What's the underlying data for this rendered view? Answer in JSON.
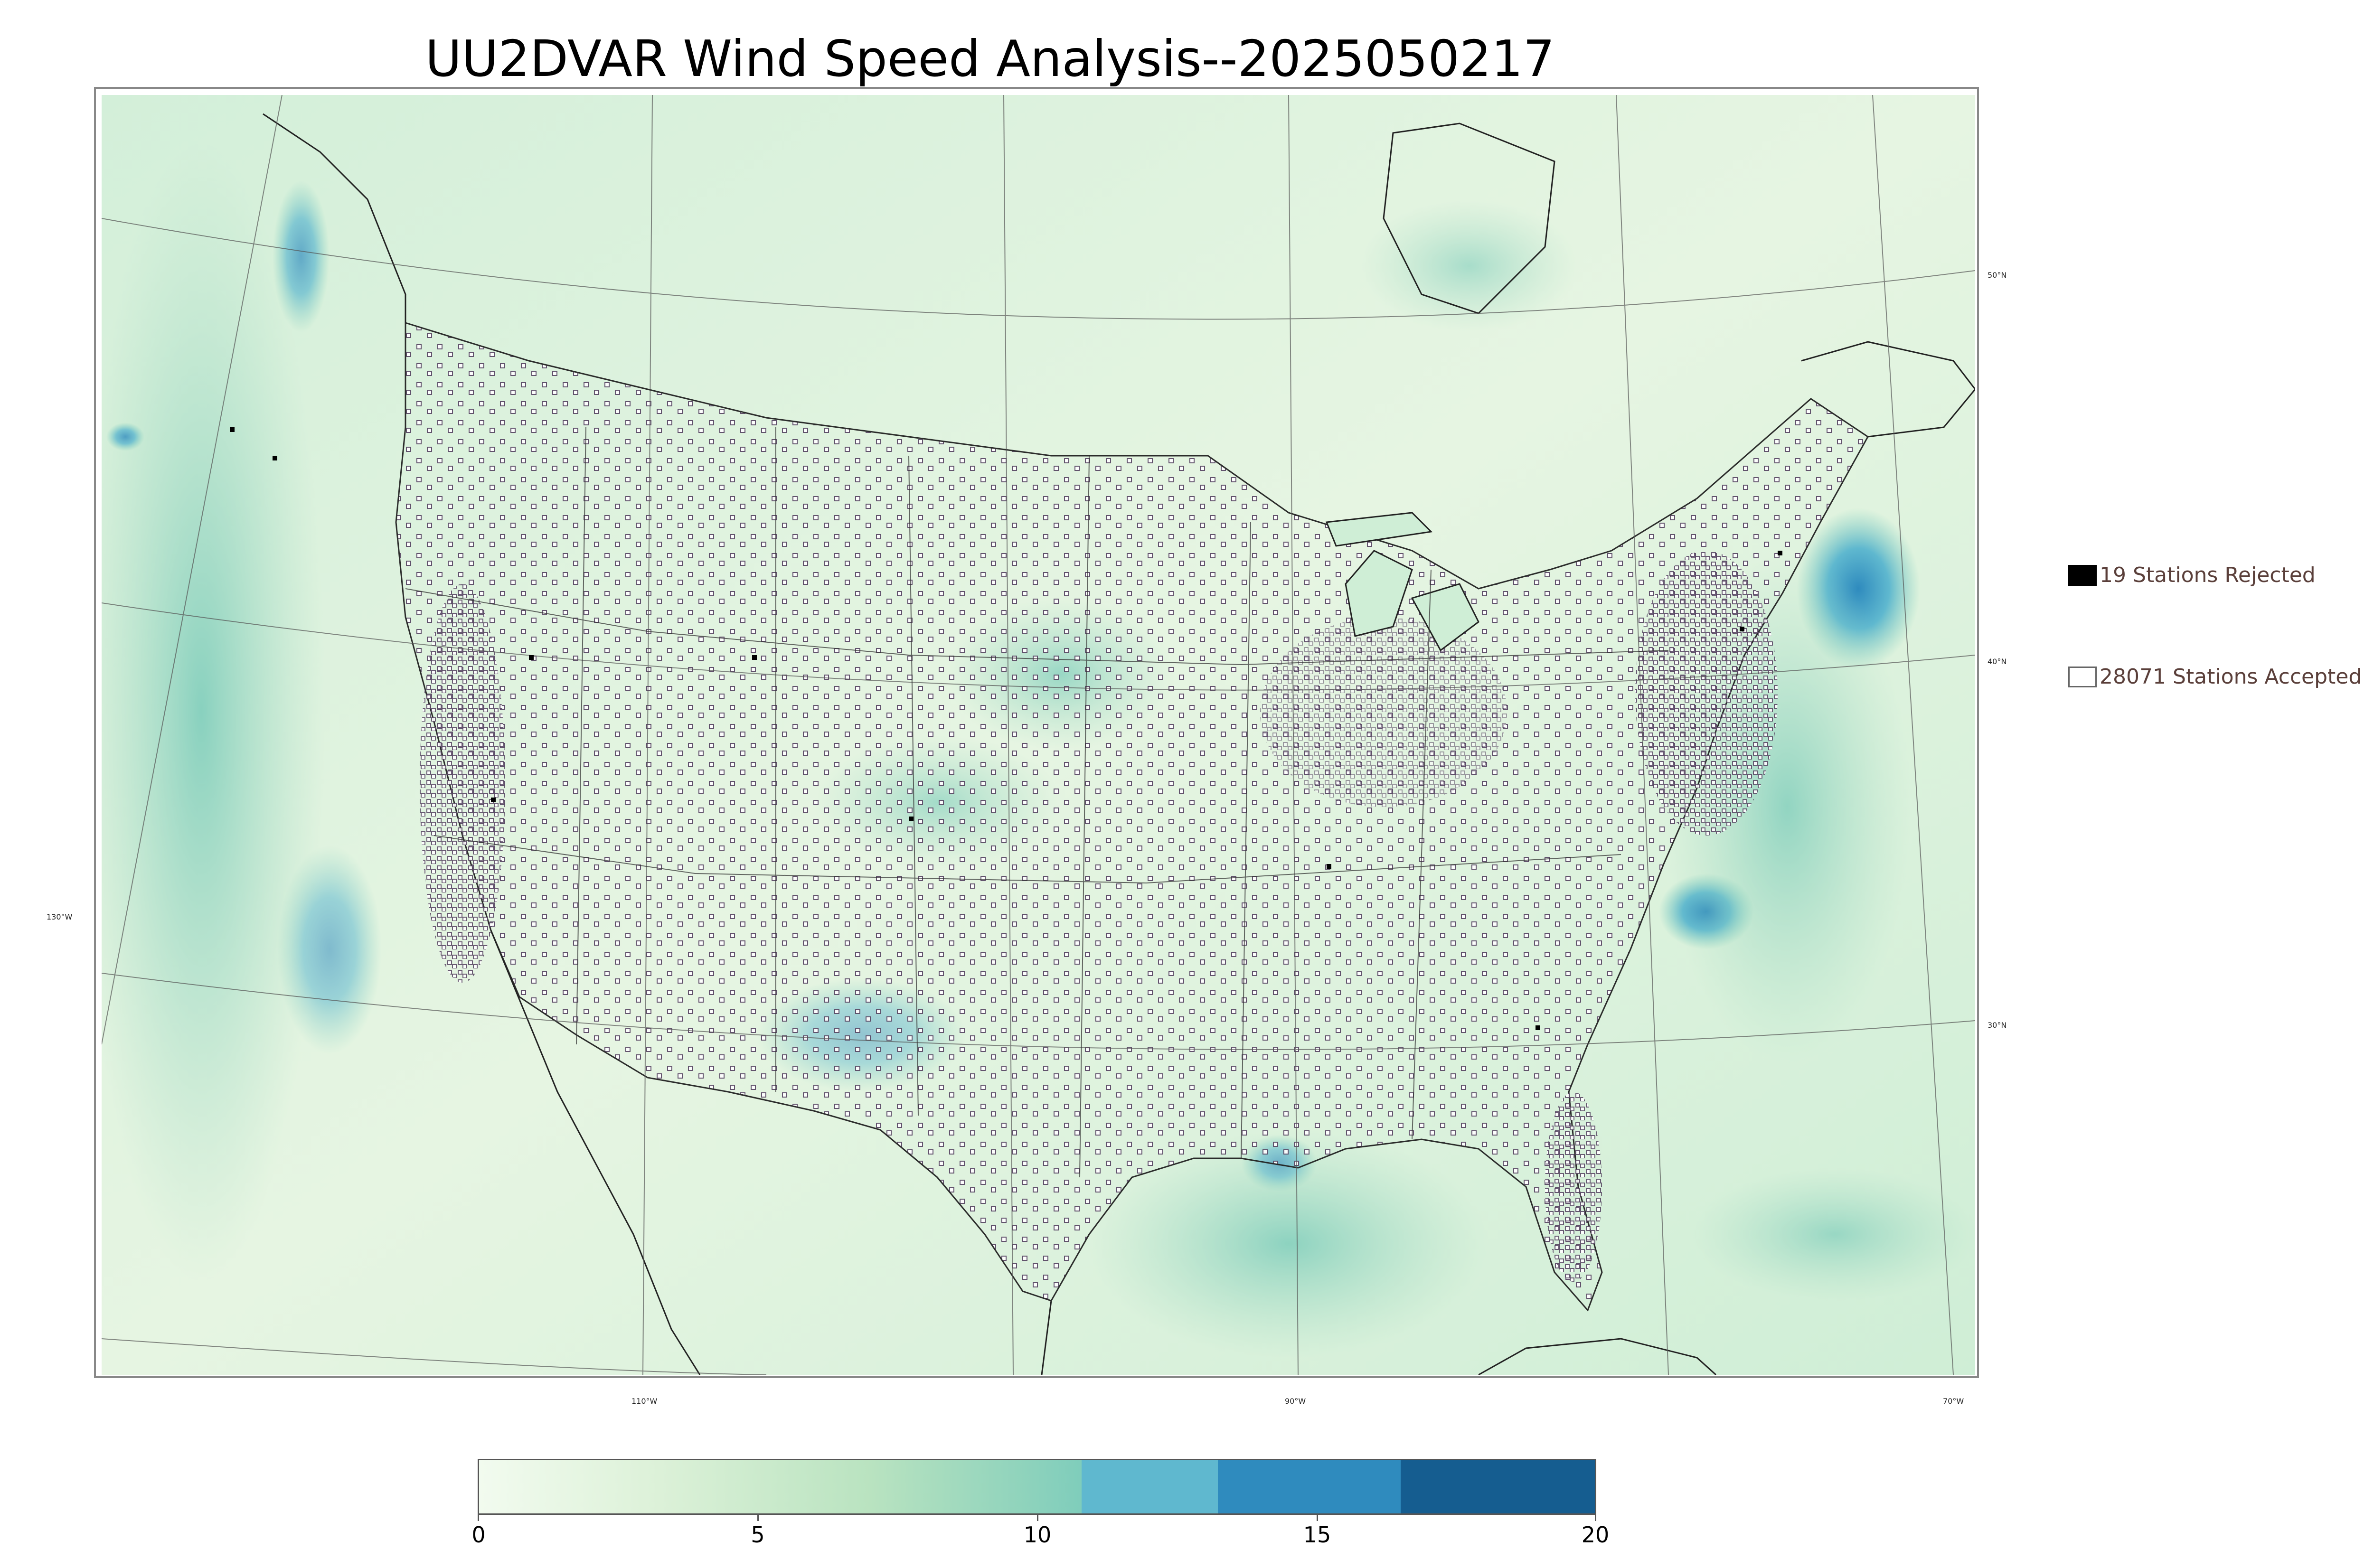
{
  "title": "UU2DVAR Wind Speed Analysis--2025050217",
  "map": {
    "lat_labels": [
      "50°N",
      "40°N",
      "30°N"
    ],
    "lon_labels": [
      "130°W",
      "110°W",
      "90°W",
      "70°W"
    ]
  },
  "legend": {
    "rejected": "19 Stations Rejected",
    "accepted": "28071 Stations Accepted"
  },
  "colorbar": {
    "ticks": [
      "0",
      "5",
      "10",
      "15",
      "20"
    ],
    "range": [
      0,
      20
    ],
    "colors": {
      "low": "#f2fbef",
      "mid": "#b9e3c0",
      "high_mid": "#7fcdbb",
      "band_11_13": "#5fb8cf",
      "band_13_16": "#2f8bbe",
      "band_16_20": "#155d90"
    }
  },
  "colors": {
    "ocean_field": "#c9ebd3",
    "land_field": "#e6f5e3",
    "station_outline": "#5b4a66",
    "rejected_fill": "#000000",
    "boundary": "#222222"
  }
}
